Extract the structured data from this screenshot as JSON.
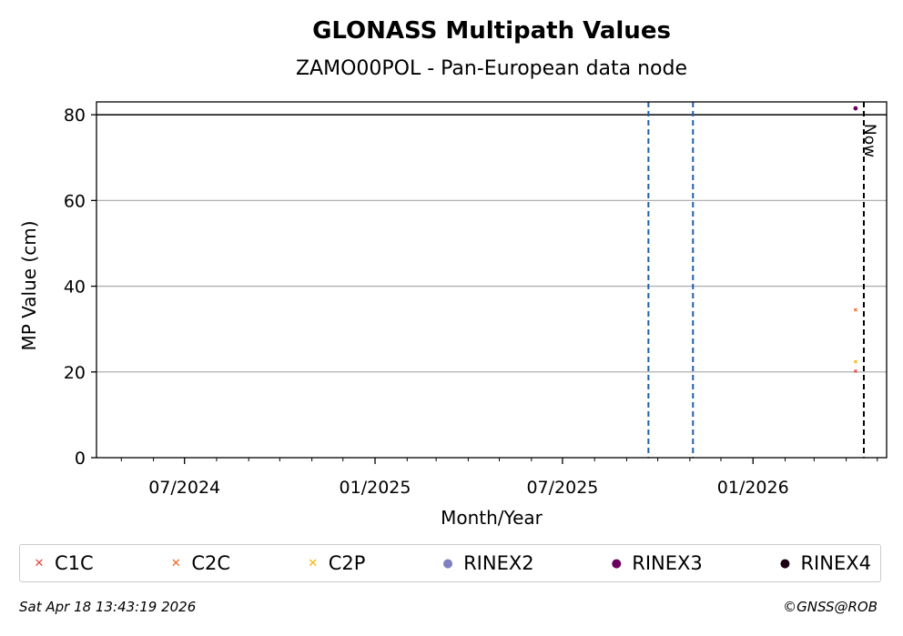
{
  "chart_data": {
    "type": "scatter",
    "title": "GLONASS Multipath Values",
    "subtitle": "ZAMO00POL - Pan-European data node",
    "xlabel": "Month/Year",
    "ylabel": "MP Value (cm)",
    "xlim": [
      "2024-04-07",
      "2026-05-10"
    ],
    "ylim": [
      0,
      83
    ],
    "x_ticks": [
      "2024-07-01",
      "2025-01-01",
      "2025-07-01",
      "2026-01-01"
    ],
    "x_tick_labels": [
      "07/2024",
      "01/2025",
      "07/2025",
      "01/2026"
    ],
    "y_ticks": [
      0,
      20,
      40,
      60,
      80
    ],
    "y_tick_labels": [
      "0",
      "20",
      "40",
      "60",
      "80"
    ],
    "grid": "horizontal",
    "threshold_line": 80,
    "event_lines": [
      "2025-09-22",
      "2025-11-04"
    ],
    "now_line": {
      "date": "2026-04-18",
      "label": "Now"
    },
    "series": [
      {
        "name": "C1C",
        "marker": "x",
        "color": "#e8413c",
        "points": [
          {
            "x": "2026-04-10",
            "y": 20.2
          }
        ]
      },
      {
        "name": "C2C",
        "marker": "x",
        "color": "#f26522",
        "points": [
          {
            "x": "2026-04-10",
            "y": 34.5
          }
        ]
      },
      {
        "name": "C2P",
        "marker": "x",
        "color": "#f5b400",
        "points": [
          {
            "x": "2026-04-10",
            "y": 22.4
          }
        ]
      },
      {
        "name": "RINEX2",
        "marker": "dot",
        "color": "#8080c0",
        "points": []
      },
      {
        "name": "RINEX3",
        "marker": "dot",
        "color": "#6a0060",
        "points": [
          {
            "x": "2026-04-10",
            "y": 81.5
          }
        ]
      },
      {
        "name": "RINEX4",
        "marker": "dot",
        "color": "#1a0010",
        "points": []
      }
    ],
    "legend_placement": "bottom"
  },
  "colors": {
    "threshold": "#000000",
    "event_line": "#1f5fa8",
    "now_line": "#000000",
    "grid": "#b0b0b0"
  },
  "footer": {
    "timestamp": "Sat Apr 18 13:43:19 2026",
    "credit": "©GNSS@ROB"
  }
}
